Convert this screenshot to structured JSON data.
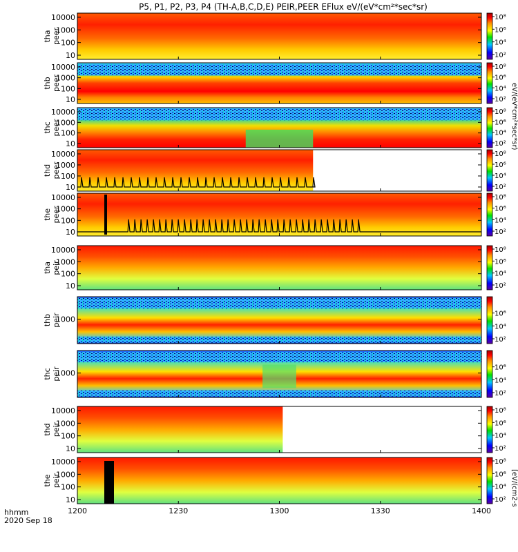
{
  "chart_data": {
    "type": "heatmap",
    "title": "P5, P1, P2, P3, P4 (TH-A,B,C,D,E) PEIR,PEER EFlux eV/(eV*cm²*sec*sr)",
    "xlabel": [
      "hhmm",
      "2020 Sep 18"
    ],
    "x_ticks": [
      "1200",
      "1230",
      "1300",
      "1330",
      "1400"
    ],
    "x_range": [
      "12:00",
      "14:00"
    ],
    "colorbar_labels": [
      "10⁸",
      "10⁶",
      "10⁴",
      "10²"
    ],
    "colorbar_title_right": "eV/(eV*cm²*sec*sr)",
    "colorbar_title_bottom": "[eV/(cm2-s",
    "panels": [
      {
        "label_top": "tha",
        "label_bottom": "peer",
        "y_ticks": [
          "10000",
          "1000",
          "100",
          "10"
        ],
        "y_scale": "log"
      },
      {
        "label_top": "thb",
        "label_bottom": "peer",
        "y_ticks": [
          "10000",
          "1000",
          "100",
          "10"
        ],
        "y_scale": "log"
      },
      {
        "label_top": "thc",
        "label_bottom": "peer",
        "y_ticks": [
          "10000",
          "1000",
          "100",
          "10"
        ],
        "y_scale": "log"
      },
      {
        "label_top": "thd",
        "label_bottom": "peer",
        "y_ticks": [
          "10000",
          "1000",
          "100",
          "10"
        ],
        "y_scale": "log",
        "data_end": "13:10"
      },
      {
        "label_top": "the",
        "label_bottom": "peer",
        "y_ticks": [
          "10000",
          "1000",
          "100",
          "10"
        ],
        "y_scale": "log"
      },
      {
        "label_top": "tha",
        "label_bottom": "peir",
        "y_ticks": [
          "10000",
          "1000",
          "100",
          "10"
        ],
        "y_scale": "log"
      },
      {
        "label_top": "thb",
        "label_bottom": "peir",
        "y_ticks": [
          "1000"
        ],
        "y_scale": "log"
      },
      {
        "label_top": "thc",
        "label_bottom": "peir",
        "y_ticks": [
          "1000"
        ],
        "y_scale": "log"
      },
      {
        "label_top": "thd",
        "label_bottom": "peir",
        "y_ticks": [
          "10000",
          "1000",
          "100",
          "10"
        ],
        "y_scale": "log",
        "data_end": "13:01"
      },
      {
        "label_top": "the",
        "label_bottom": "peir",
        "y_ticks": [
          "10000",
          "1000",
          "100",
          "10"
        ],
        "y_scale": "log"
      }
    ]
  }
}
